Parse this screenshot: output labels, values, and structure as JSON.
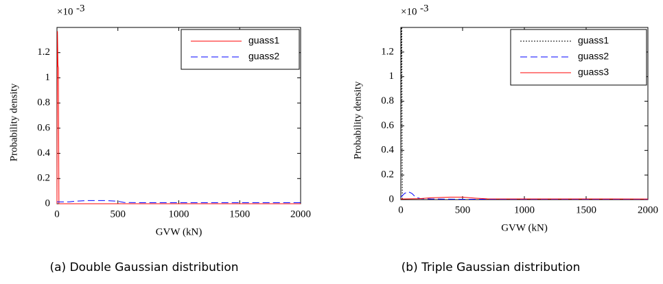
{
  "chart_data": [
    {
      "type": "line",
      "caption": "(a) Double Gaussian distribution",
      "scale_base": "×10",
      "scale_exponent": "-3",
      "x_label": "GVW (kN)",
      "y_label": "Probability density",
      "xlim": [
        0,
        2000
      ],
      "xticks": [
        0,
        500,
        1000,
        1500,
        2000
      ],
      "ylim": [
        0,
        1.4
      ],
      "yticks": [
        0,
        0.2,
        0.4,
        0.6,
        0.8,
        1.0,
        1.2
      ],
      "legend": "upper right",
      "series": [
        {
          "name": "guass1",
          "color": "#ff0000",
          "dash": "solid",
          "x": [
            0,
            4,
            8,
            12,
            16,
            2000
          ],
          "values": [
            0,
            1.37,
            1.1,
            1.08,
            0,
            0
          ]
        },
        {
          "name": "guass2",
          "color": "#0000ff",
          "dash": "dashed",
          "x": [
            0,
            100,
            150,
            250,
            400,
            500,
            550,
            700,
            2000
          ],
          "values": [
            0.015,
            0.015,
            0.02,
            0.025,
            0.025,
            0.02,
            0.01,
            0.008,
            0.008
          ]
        }
      ]
    },
    {
      "type": "line",
      "caption": "(b) Triple Gaussian distribution",
      "scale_base": "×10",
      "scale_exponent": "-3",
      "x_label": "GVW (kN)",
      "y_label": "Probability density",
      "xlim": [
        0,
        2000
      ],
      "xticks": [
        0,
        500,
        1000,
        1500,
        2000
      ],
      "ylim": [
        0,
        1.4
      ],
      "yticks": [
        0,
        0.2,
        0.4,
        0.6,
        0.8,
        1.0,
        1.2
      ],
      "legend": "upper right",
      "series": [
        {
          "name": "guass1",
          "color": "#000000",
          "dash": "dotted",
          "x": [
            0,
            4,
            8,
            12,
            2000
          ],
          "values": [
            0,
            1.4,
            1.4,
            0,
            0
          ]
        },
        {
          "name": "guass2",
          "color": "#0000ff",
          "dash": "dashed",
          "x": [
            0,
            30,
            60,
            90,
            120,
            160,
            250,
            500,
            2000
          ],
          "values": [
            0.02,
            0.05,
            0.065,
            0.05,
            0.02,
            0.008,
            0.005,
            0.003,
            0.003
          ]
        },
        {
          "name": "guass3",
          "color": "#ff0000",
          "dash": "solid",
          "x": [
            0,
            150,
            250,
            400,
            500,
            600,
            700,
            2000
          ],
          "values": [
            0.005,
            0.008,
            0.015,
            0.02,
            0.02,
            0.012,
            0.006,
            0.005
          ]
        }
      ]
    }
  ]
}
